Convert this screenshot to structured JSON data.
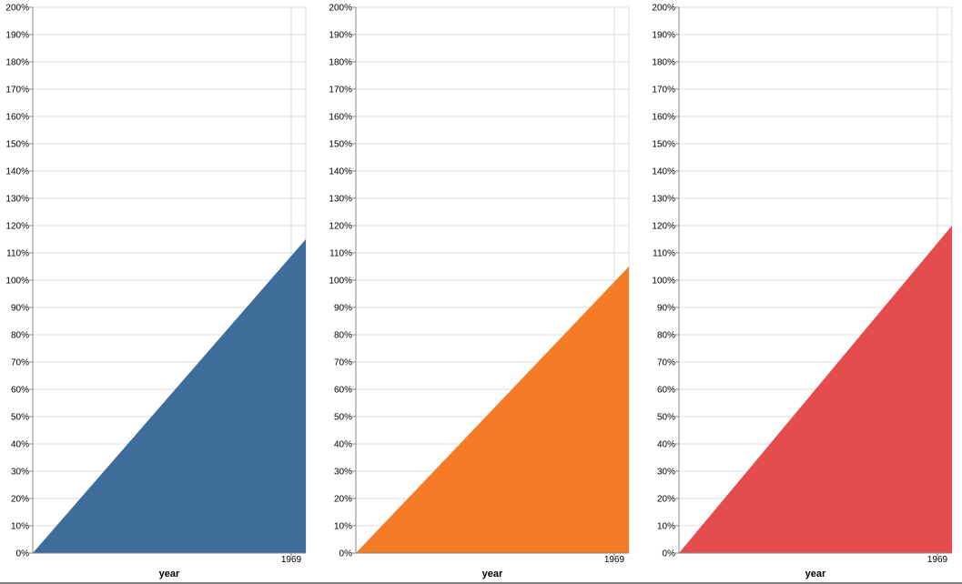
{
  "chart_data": [
    {
      "type": "area",
      "x": [
        "",
        "1969"
      ],
      "values": [
        0,
        115
      ],
      "ylim": [
        0,
        200
      ],
      "yticks": [
        "0%",
        "10%",
        "20%",
        "30%",
        "40%",
        "50%",
        "60%",
        "70%",
        "80%",
        "90%",
        "100%",
        "110%",
        "120%",
        "130%",
        "140%",
        "150%",
        "160%",
        "170%",
        "180%",
        "190%",
        "200%"
      ],
      "xlabel": "year",
      "ylabel": "",
      "color": "#3e6d9b",
      "grid": true
    },
    {
      "type": "area",
      "x": [
        "",
        "1969"
      ],
      "values": [
        0,
        105
      ],
      "ylim": [
        0,
        200
      ],
      "yticks": [
        "0%",
        "10%",
        "20%",
        "30%",
        "40%",
        "50%",
        "60%",
        "70%",
        "80%",
        "90%",
        "100%",
        "110%",
        "120%",
        "130%",
        "140%",
        "150%",
        "160%",
        "170%",
        "180%",
        "190%",
        "200%"
      ],
      "xlabel": "year",
      "ylabel": "",
      "color": "#f57b27",
      "grid": true
    },
    {
      "type": "area",
      "x": [
        "",
        "1969"
      ],
      "values": [
        0,
        120
      ],
      "ylim": [
        0,
        200
      ],
      "yticks": [
        "0%",
        "10%",
        "20%",
        "30%",
        "40%",
        "50%",
        "60%",
        "70%",
        "80%",
        "90%",
        "100%",
        "110%",
        "120%",
        "130%",
        "140%",
        "150%",
        "160%",
        "170%",
        "180%",
        "190%",
        "200%"
      ],
      "xlabel": "year",
      "ylabel": "",
      "color": "#e44c4e",
      "grid": true
    }
  ]
}
